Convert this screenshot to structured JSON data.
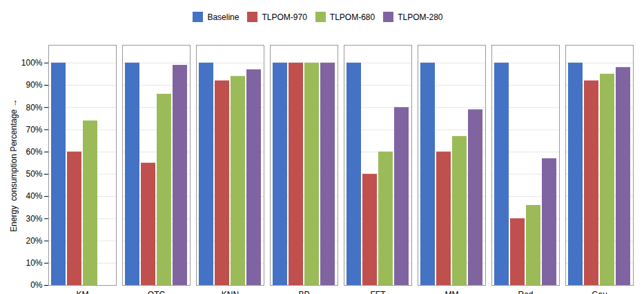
{
  "chart_data": {
    "type": "bar",
    "categories": [
      "KM",
      "QTC",
      "KNN",
      "BP",
      "FFT",
      "MM",
      "Red",
      "Gau"
    ],
    "series": [
      {
        "name": "Baseline",
        "color": "#4472C4",
        "values": [
          100,
          100,
          100,
          100,
          100,
          100,
          100,
          100
        ]
      },
      {
        "name": "TLPOM-970",
        "color": "#C0504D",
        "values": [
          60,
          55,
          92,
          100,
          50,
          60,
          30,
          92
        ]
      },
      {
        "name": "TLPOM-680",
        "color": "#9BBB59",
        "values": [
          74,
          86,
          94,
          100,
          60,
          67,
          36,
          95
        ]
      },
      {
        "name": "TLPOM-280",
        "color": "#8064A2",
        "values": [
          0,
          99,
          97,
          100,
          80,
          79,
          57,
          98
        ]
      }
    ],
    "ylabel": "Energy  consumption Percentage",
    "ylim": [
      0,
      108
    ],
    "yticks": [
      {
        "value": 0,
        "label": "0%"
      },
      {
        "value": 10,
        "label": "10%"
      },
      {
        "value": 20,
        "label": "20%"
      },
      {
        "value": 30,
        "label": "30%"
      },
      {
        "value": 40,
        "label": "40%"
      },
      {
        "value": 50,
        "label": "50%"
      },
      {
        "value": 60,
        "label": "60%"
      },
      {
        "value": 70,
        "label": "70%"
      },
      {
        "value": 80,
        "label": "80%"
      },
      {
        "value": 90,
        "label": "90%"
      },
      {
        "value": 100,
        "label": "100%"
      }
    ],
    "grid": true,
    "legend": "top"
  }
}
